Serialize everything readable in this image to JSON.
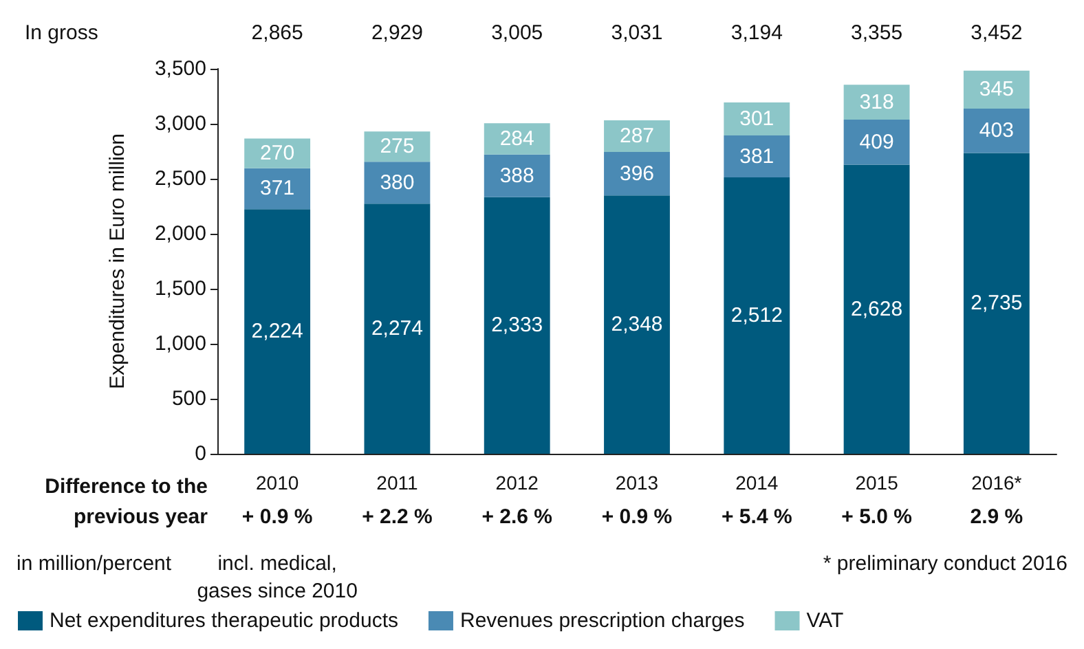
{
  "chart_data": {
    "type": "bar",
    "stacked": true,
    "ylabel": "Expenditures in Euro million",
    "categories": [
      "2010",
      "2011",
      "2012",
      "2013",
      "2014",
      "2015",
      "2016*"
    ],
    "series": [
      {
        "name": "Net expenditures therapeutic products",
        "color": "#005a7e",
        "values": [
          2224,
          2274,
          2333,
          2348,
          2512,
          2628,
          2735
        ],
        "value_labels": [
          "2,224",
          "2,274",
          "2,333",
          "2,348",
          "2,512",
          "2,628",
          "2,735"
        ]
      },
      {
        "name": "Revenues prescription charges",
        "color": "#4a8ab4",
        "values": [
          371,
          380,
          388,
          396,
          381,
          409,
          403
        ],
        "value_labels": [
          "371",
          "380",
          "388",
          "396",
          "381",
          "409",
          "403"
        ]
      },
      {
        "name": "VAT",
        "color": "#8cc6c8",
        "values": [
          270,
          275,
          284,
          287,
          301,
          318,
          345
        ],
        "value_labels": [
          "270",
          "275",
          "284",
          "287",
          "301",
          "318",
          "345"
        ]
      }
    ],
    "ylim": [
      0,
      3500
    ],
    "yticks": [
      0,
      500,
      {
        "value": 1000,
        "label": "1,000"
      },
      {
        "value": 1500,
        "label": "1,500"
      },
      {
        "value": 2000,
        "label": "2,000"
      },
      {
        "value": 2500,
        "label": "2,500"
      },
      {
        "value": 3000,
        "label": "3,000"
      },
      {
        "value": 3500,
        "label": "3,500"
      }
    ],
    "grid": false,
    "legend": "bottom",
    "annotations": [
      "In gross",
      "Difference to the previous year",
      "in million/percent",
      "incl. medical, gases since 2010",
      "* preliminary conduct 2016",
      "2,865",
      "2,929",
      "3,005",
      "3,031",
      "3,194",
      "3,355",
      "3,452",
      "+ 0.9 %",
      "+ 2.2 %",
      "+ 2.6 %",
      "+ 0.9 %",
      "+ 5.4 %",
      "+ 5.0 %",
      "2.9 %"
    ]
  }
}
